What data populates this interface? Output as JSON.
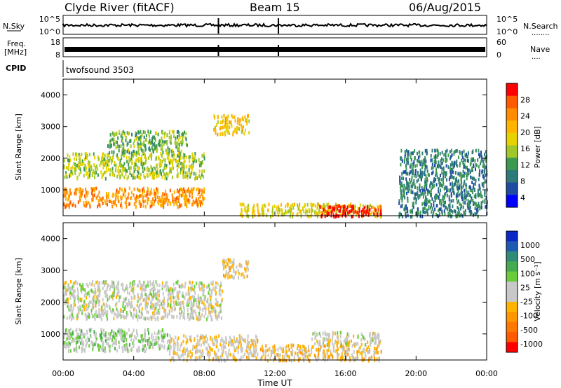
{
  "header": {
    "left": "Clyde River (fitACF)",
    "center": "Beam 15",
    "right": "06/Aug/2015"
  },
  "strip1": {
    "left_label": "N.Sky",
    "left_ticks": [
      "10^5",
      "10^0"
    ],
    "right_ticks": [
      "10^5",
      "10^0"
    ],
    "right_label": "N.Search",
    "right_dots": "........"
  },
  "strip2": {
    "left_label_1": "Freq.",
    "left_label_2": "[MHz]",
    "left_ticks": [
      "18",
      "8"
    ],
    "right_ticks": [
      "60",
      "0"
    ],
    "right_label": "Nave",
    "right_dots": "...."
  },
  "strip3": {
    "left_label": "CPID",
    "program": "twofsound 3503"
  },
  "panel_power": {
    "ylabel": "Slant Range [km]",
    "yticks": [
      "4000",
      "3000",
      "2000",
      "1000"
    ],
    "colorbar_label": "Power [dB]",
    "colorbar_ticks": [
      "28",
      "24",
      "20",
      "16",
      "12",
      "8",
      "4"
    ],
    "colors": [
      "#ff0000",
      "#ff5a00",
      "#ff8c00",
      "#ffb400",
      "#e6d200",
      "#a0c828",
      "#3c9a50",
      "#2e7a7a",
      "#1e4ca0",
      "#0000ff"
    ]
  },
  "panel_velocity": {
    "ylabel": "Slant Range [km]",
    "yticks": [
      "4000",
      "3000",
      "2000",
      "1000"
    ],
    "colorbar_label": "Velocity [m s⁻¹]",
    "colorbar_ticks": [
      "1000",
      "500",
      "100",
      "25",
      "-25",
      "-100",
      "-500",
      "-1000"
    ],
    "colors": [
      "#0a28c8",
      "#1e5ab4",
      "#2e8c78",
      "#46aa50",
      "#6acc3c",
      "#c8c8c8",
      "#c8c8c8",
      "#ffb400",
      "#ff9600",
      "#ff7800",
      "#ff5a00",
      "#ff0000"
    ]
  },
  "xaxis": {
    "ticks": [
      "00:00",
      "04:00",
      "08:00",
      "12:00",
      "16:00",
      "20:00",
      "00:00"
    ],
    "label": "Time UT"
  },
  "chart_data": {
    "type": "heatmap",
    "title": "Clyde River (fitACF)  Beam 15  06/Aug/2015",
    "xlabel": "Time UT",
    "ylabel": "Slant Range [km]",
    "xlim_hours": [
      0,
      24
    ],
    "ylim_km": [
      180,
      4500
    ],
    "series": [
      {
        "name": "Power [dB]",
        "range": [
          0,
          30
        ],
        "regions": [
          {
            "t": [
              0,
              8
            ],
            "r": [
              500,
              1100
            ],
            "value": 22
          },
          {
            "t": [
              0,
              8
            ],
            "r": [
              1400,
              2200
            ],
            "value": 14
          },
          {
            "t": [
              2.5,
              7
            ],
            "r": [
              2200,
              2900
            ],
            "value": 12
          },
          {
            "t": [
              8.5,
              10.5
            ],
            "r": [
              2800,
              3400
            ],
            "value": 18
          },
          {
            "t": [
              10,
              18
            ],
            "r": [
              200,
              600
            ],
            "value": 16
          },
          {
            "t": [
              14.5,
              18
            ],
            "r": [
              200,
              550
            ],
            "value": 29
          },
          {
            "t": [
              19,
              24
            ],
            "r": [
              200,
              2300
            ],
            "value": 8
          }
        ]
      },
      {
        "name": "Velocity [m s-1]",
        "range": [
          -1000,
          1000
        ],
        "regions": [
          {
            "t": [
              0,
              9
            ],
            "r": [
              1500,
              2700
            ],
            "value": 0
          },
          {
            "t": [
              0,
              6
            ],
            "r": [
              500,
              1200
            ],
            "value": 150
          },
          {
            "t": [
              6,
              11
            ],
            "r": [
              200,
              1000
            ],
            "value": -100
          },
          {
            "t": [
              11,
              18
            ],
            "r": [
              200,
              700
            ],
            "value": -200
          },
          {
            "t": [
              14,
              18
            ],
            "r": [
              700,
              1100
            ],
            "value": 0
          },
          {
            "t": [
              9,
              10.5
            ],
            "r": [
              2800,
              3400
            ],
            "value": -150
          }
        ]
      }
    ]
  }
}
